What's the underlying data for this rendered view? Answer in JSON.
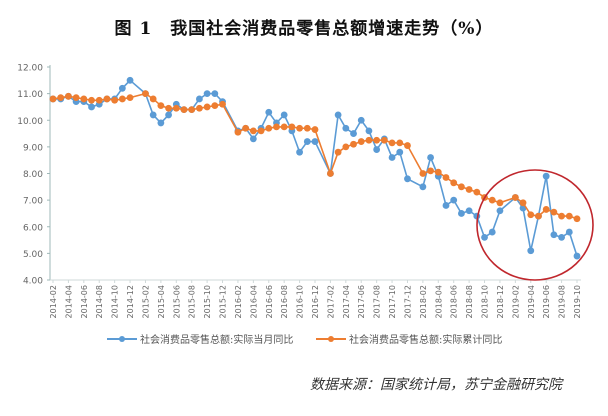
{
  "title": "图 1　我国社会消费品零售总额增速走势（%）",
  "source": "数据来源：国家统计局，苏宁金融研究院",
  "chart_data": {
    "type": "line",
    "title": "图 1　我国社会消费品零售总额增速走势（%）",
    "ylim": [
      4,
      12
    ],
    "yticks": [
      "4.00",
      "5.00",
      "6.00",
      "7.00",
      "8.00",
      "9.00",
      "10.00",
      "11.00",
      "12.00"
    ],
    "grid": false,
    "legend_position": "bottom",
    "x": [
      "2014-02",
      "2014-03",
      "2014-04",
      "2014-05",
      "2014-06",
      "2014-07",
      "2014-08",
      "2014-09",
      "2014-10",
      "2014-11",
      "2014-12",
      "2015-01",
      "2015-02",
      "2015-03",
      "2015-04",
      "2015-05",
      "2015-06",
      "2015-07",
      "2015-08",
      "2015-09",
      "2015-10",
      "2015-11",
      "2015-12",
      "2016-01",
      "2016-02",
      "2016-03",
      "2016-04",
      "2016-05",
      "2016-06",
      "2016-07",
      "2016-08",
      "2016-09",
      "2016-10",
      "2016-11",
      "2016-12",
      "2017-01",
      "2017-02",
      "2017-03",
      "2017-04",
      "2017-05",
      "2017-06",
      "2017-07",
      "2017-08",
      "2017-09",
      "2017-10",
      "2017-11",
      "2017-12",
      "2018-01",
      "2018-02",
      "2018-03",
      "2018-04",
      "2018-05",
      "2018-06",
      "2018-07",
      "2018-08",
      "2018-09",
      "2018-10",
      "2018-11",
      "2018-12",
      "2019-01",
      "2019-02",
      "2019-03",
      "2019-04",
      "2019-05",
      "2019-06",
      "2019-07",
      "2019-08",
      "2019-09",
      "2019-10"
    ],
    "series": [
      {
        "name": "社会消费品零售总额:实际当月同比",
        "color": "#5b9bd5",
        "values": [
          10.8,
          10.8,
          10.9,
          10.7,
          10.7,
          10.5,
          10.6,
          10.8,
          10.8,
          11.2,
          11.5,
          null,
          11.0,
          10.2,
          9.9,
          10.2,
          10.6,
          10.4,
          10.4,
          10.8,
          11.0,
          11.0,
          10.7,
          null,
          9.6,
          9.7,
          9.3,
          9.7,
          10.3,
          9.9,
          10.2,
          9.6,
          8.8,
          9.2,
          9.2,
          null,
          8.0,
          10.2,
          9.7,
          9.5,
          10.0,
          9.6,
          8.9,
          9.3,
          8.6,
          8.8,
          7.8,
          null,
          7.5,
          8.6,
          7.9,
          6.8,
          7.0,
          6.5,
          6.6,
          6.4,
          5.6,
          5.8,
          6.6,
          null,
          7.1,
          6.7,
          5.1,
          6.4,
          7.9,
          5.7,
          5.6,
          5.8,
          4.9
        ]
      },
      {
        "name": "社会消费品零售总额:实际累计同比",
        "color": "#ed7d31",
        "values": [
          10.8,
          10.85,
          10.9,
          10.85,
          10.8,
          10.75,
          10.75,
          10.8,
          10.75,
          10.8,
          10.85,
          null,
          11.0,
          10.8,
          10.55,
          10.45,
          10.45,
          10.4,
          10.4,
          10.45,
          10.5,
          10.55,
          10.6,
          null,
          9.55,
          9.7,
          9.6,
          9.6,
          9.7,
          9.75,
          9.75,
          9.75,
          9.7,
          9.7,
          9.65,
          null,
          8.0,
          8.8,
          9.0,
          9.1,
          9.2,
          9.25,
          9.25,
          9.25,
          9.15,
          9.15,
          9.05,
          null,
          8.0,
          8.1,
          8.05,
          7.85,
          7.65,
          7.5,
          7.4,
          7.3,
          7.1,
          7.0,
          6.9,
          null,
          7.1,
          6.9,
          6.45,
          6.4,
          6.65,
          6.55,
          6.4,
          6.4,
          6.3
        ]
      }
    ],
    "annotation": {
      "type": "circle",
      "color": "#c0272d",
      "highlights": "2018-10 to 2019-10"
    }
  }
}
